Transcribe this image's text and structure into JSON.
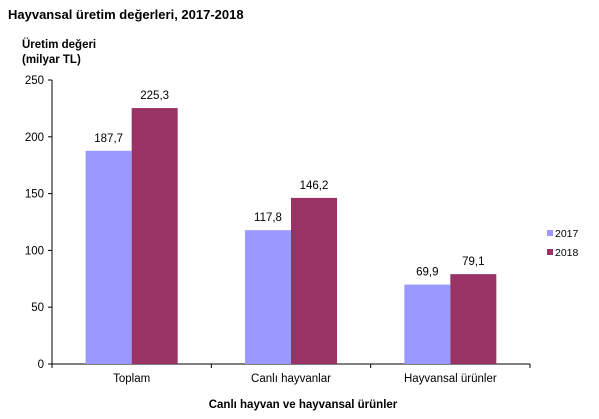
{
  "chart_data": {
    "type": "bar",
    "title": "Hayvansal üretim değerleri, 2017-2018",
    "ylabel_lines": [
      "Üretim değeri",
      "(milyar TL)"
    ],
    "xlabel": "Canlı hayvan ve hayvansal ürünler",
    "categories": [
      "Toplam",
      "Canlı hayvanlar",
      "Hayvansal ürünler"
    ],
    "series": [
      {
        "name": "2017",
        "color": "#9999ff",
        "values": [
          187.7,
          117.8,
          69.9
        ],
        "labels": [
          "187,7",
          "117,8",
          "69,9"
        ]
      },
      {
        "name": "2018",
        "color": "#993366",
        "values": [
          225.3,
          146.2,
          79.1
        ],
        "labels": [
          "225,3",
          "146,2",
          "79,1"
        ]
      }
    ],
    "ylim": [
      0,
      250
    ],
    "yticks": [
      0,
      50,
      100,
      150,
      200,
      250
    ],
    "grid": false,
    "legend_position": "right"
  }
}
